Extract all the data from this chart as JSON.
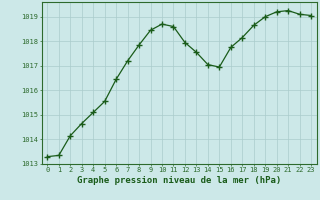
{
  "x": [
    0,
    1,
    2,
    3,
    4,
    5,
    6,
    7,
    8,
    9,
    10,
    11,
    12,
    13,
    14,
    15,
    16,
    17,
    18,
    19,
    20,
    21,
    22,
    23
  ],
  "y": [
    1013.3,
    1013.35,
    1014.15,
    1014.65,
    1015.1,
    1015.55,
    1016.45,
    1017.2,
    1017.85,
    1018.45,
    1018.7,
    1018.6,
    1017.95,
    1017.55,
    1017.05,
    1016.95,
    1017.75,
    1018.15,
    1018.65,
    1019.0,
    1019.2,
    1019.25,
    1019.1,
    1019.05
  ],
  "line_color": "#1a5c1a",
  "marker": "+",
  "marker_color": "#1a5c1a",
  "bg_color": "#cce8e8",
  "grid_color": "#aacccc",
  "title": "Graphe pression niveau de la mer (hPa)",
  "xlim": [
    -0.5,
    23.5
  ],
  "ylim": [
    1013.0,
    1019.6
  ],
  "yticks": [
    1013,
    1014,
    1015,
    1016,
    1017,
    1018,
    1019
  ],
  "xticks": [
    0,
    1,
    2,
    3,
    4,
    5,
    6,
    7,
    8,
    9,
    10,
    11,
    12,
    13,
    14,
    15,
    16,
    17,
    18,
    19,
    20,
    21,
    22,
    23
  ],
  "title_fontsize": 6.5,
  "tick_fontsize": 5.0,
  "axis_color": "#2d6a2d",
  "title_color": "#1a5c1a"
}
